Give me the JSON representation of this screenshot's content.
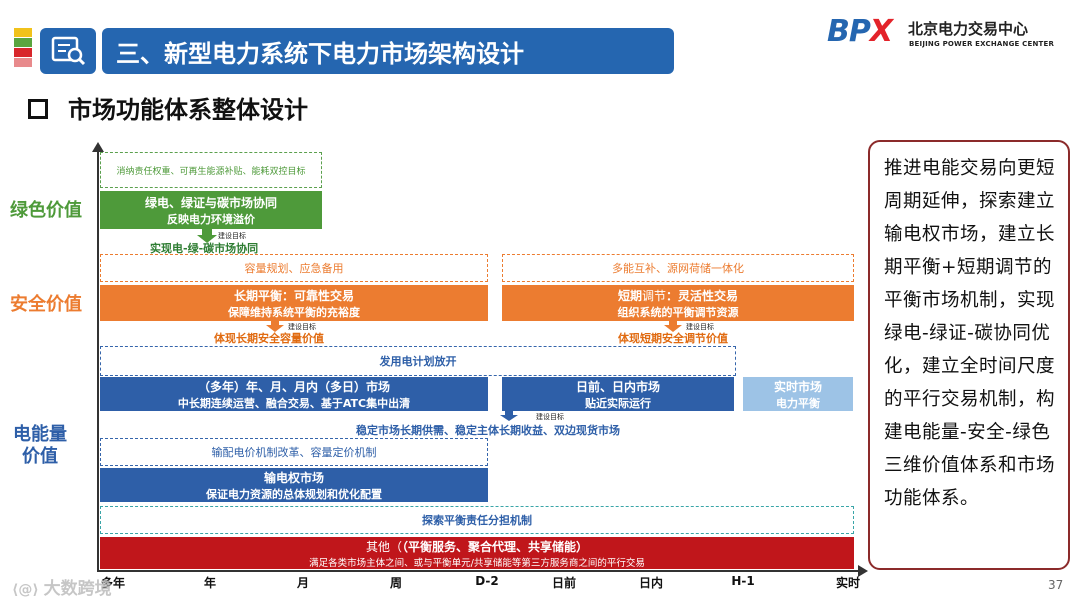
{
  "header": {
    "title": "三、新型电力系统下电力市场架构设计",
    "logo_mark": "BPX",
    "logo_cn": "北京电力交易中心",
    "logo_en": "BEIJING POWER EXCHANGE CENTER"
  },
  "subtitle": "市场功能体系整体设计",
  "categories": {
    "green": "绿色价值",
    "security": "安全价值",
    "energy": "电能量价值"
  },
  "green": {
    "dashed": "消纳责任权重、可再生能源补贴、能耗双控目标",
    "bar_line1": "绿电、绿证与碳市场协同",
    "bar_line2": "反映电力环境溢价",
    "note": "建设目标",
    "goal": "实现电-绿-碳市场协同"
  },
  "security_left": {
    "dashed": "容量规划、应急备用",
    "bar_line1": "长期平衡：可靠性交易",
    "bar_line2": "保障维持系统平衡的充裕度",
    "note": "建设目标",
    "goal": "体现长期安全容量价值"
  },
  "security_right": {
    "dashed": "多能互补、源网荷储一体化",
    "bar_line1_a": "短期",
    "bar_line1_b": "调节",
    "bar_line1_c": "：灵活性交易",
    "bar_line2": "组织系统的平衡调节资源",
    "note": "建设目标",
    "goal": "体现短期安全调节价值"
  },
  "energy": {
    "dashed_top": "发用电计划放开",
    "bar1_line1": "（多年）年、月、月内（多日）市场",
    "bar1_line2": "中长期连续运营、融合交易、基于ATC集中出清",
    "bar2_line1": "日前、日内市场",
    "bar2_line2": "贴近实际运行",
    "bar3_line1": "实时市场",
    "bar3_line2": "电力平衡",
    "note": "建设目标",
    "goal": "稳定市场长期供需、稳定主体长期收益、双边现货市场",
    "dashed_trans": "输配电价机制改革、容量定价机制",
    "trans_line1": "输电权市场",
    "trans_line2": "保证电力资源的总体规划和优化配置"
  },
  "balance": "探索平衡责任分担机制",
  "other": {
    "line1_a": "其他（",
    "line1_b": "（平衡服务、聚合代理、共享储能）",
    "line2": "满足各类市场主体之间、或与平衡单元/共享储能等第三方服务商之间的平行交易"
  },
  "x_ticks": [
    "多年",
    "年",
    "月",
    "周",
    "D-2",
    "日前",
    "日内",
    "H-1",
    "实时"
  ],
  "summary": "推进电能交易向更短周期延伸，探索建立输电权市场，建立长期平衡+短期调节的平衡市场机制，实现绿电-绿证-碳协同优化，建立全时间尺度的平行交易机制，构建电能量-安全-绿色三维价值体系和市场功能体系。",
  "page_number": "37",
  "watermark": "大数跨境",
  "colors": {
    "title_blue": "#2566b0",
    "green": "#4e9a3a",
    "orange": "#ec7c30",
    "blue": "#2e5fa8",
    "light_blue": "#9dc3e6",
    "red": "#c0161b",
    "teal": "#3aa5a8",
    "border_red": "#8b2a2a"
  }
}
